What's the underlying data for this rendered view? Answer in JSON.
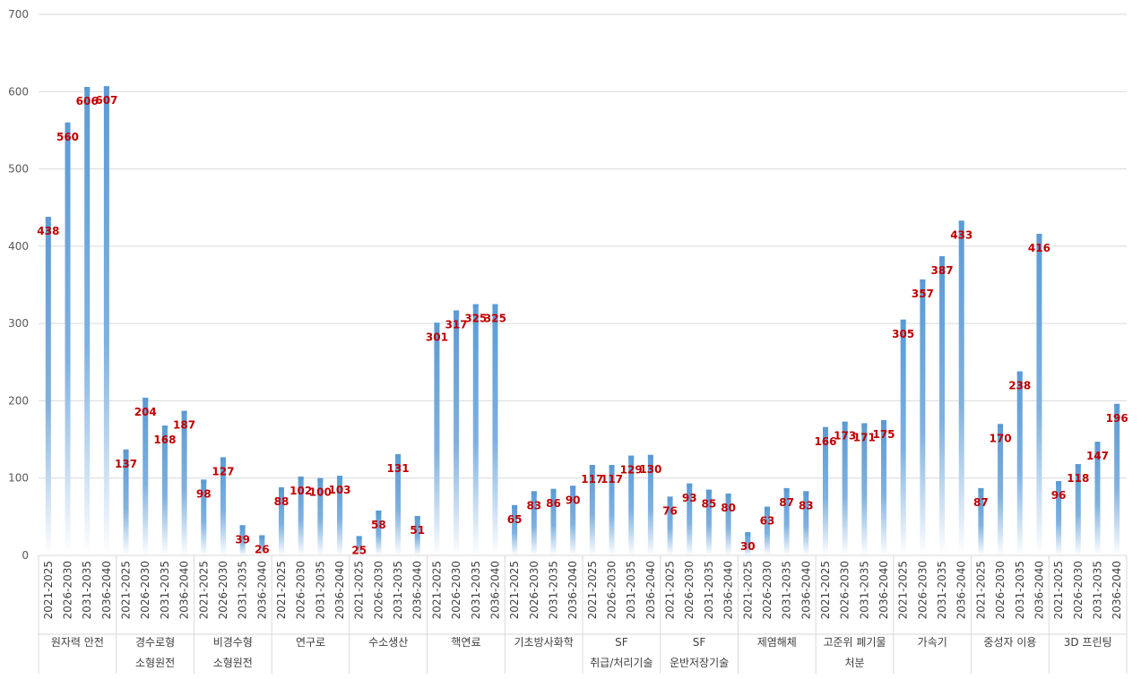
{
  "colors": {
    "bar_top": "#5b9bd5",
    "bar_bottom": "#ffffff",
    "data_label": "#c00000",
    "grid": "#d9d9d9",
    "axis_text": "#595959"
  },
  "chart_data": {
    "type": "bar",
    "title": "",
    "xlabel": "",
    "ylabel": "",
    "ylim": [
      0,
      700
    ],
    "yticks": [
      0,
      100,
      200,
      300,
      400,
      500,
      600,
      700
    ],
    "grid": true,
    "legend": "none",
    "periods": [
      "2021-2025",
      "2026-2030",
      "2031-2035",
      "2036-2040"
    ],
    "groups": [
      {
        "label_lines": [
          "원자력 안전"
        ],
        "values": [
          438,
          560,
          606,
          607
        ]
      },
      {
        "label_lines": [
          "경수로형",
          "소형원전"
        ],
        "values": [
          137,
          204,
          168,
          187
        ]
      },
      {
        "label_lines": [
          "비경수형",
          "소형원전"
        ],
        "values": [
          98,
          127,
          39,
          26
        ]
      },
      {
        "label_lines": [
          "연구로"
        ],
        "values": [
          88,
          102,
          100,
          103
        ]
      },
      {
        "label_lines": [
          "수소생산"
        ],
        "values": [
          25,
          58,
          131,
          51
        ]
      },
      {
        "label_lines": [
          "핵연료"
        ],
        "values": [
          301,
          317,
          325,
          325
        ]
      },
      {
        "label_lines": [
          "기초방사화학"
        ],
        "values": [
          65,
          83,
          86,
          90
        ]
      },
      {
        "label_lines": [
          "SF",
          "취급/처리기술"
        ],
        "values": [
          117,
          117,
          129,
          130
        ]
      },
      {
        "label_lines": [
          "SF",
          "운반저장기술"
        ],
        "values": [
          76,
          93,
          85,
          80
        ]
      },
      {
        "label_lines": [
          "제염해체"
        ],
        "values": [
          30,
          63,
          87,
          83
        ]
      },
      {
        "label_lines": [
          "고준위 폐기물",
          "처분"
        ],
        "values": [
          166,
          173,
          171,
          175
        ]
      },
      {
        "label_lines": [
          "가속기"
        ],
        "values": [
          305,
          357,
          387,
          433
        ]
      },
      {
        "label_lines": [
          "중성자 이용"
        ],
        "values": [
          87,
          170,
          238,
          416
        ]
      },
      {
        "label_lines": [
          "3D 프린팅"
        ],
        "values": [
          96,
          118,
          147,
          196
        ]
      }
    ]
  }
}
